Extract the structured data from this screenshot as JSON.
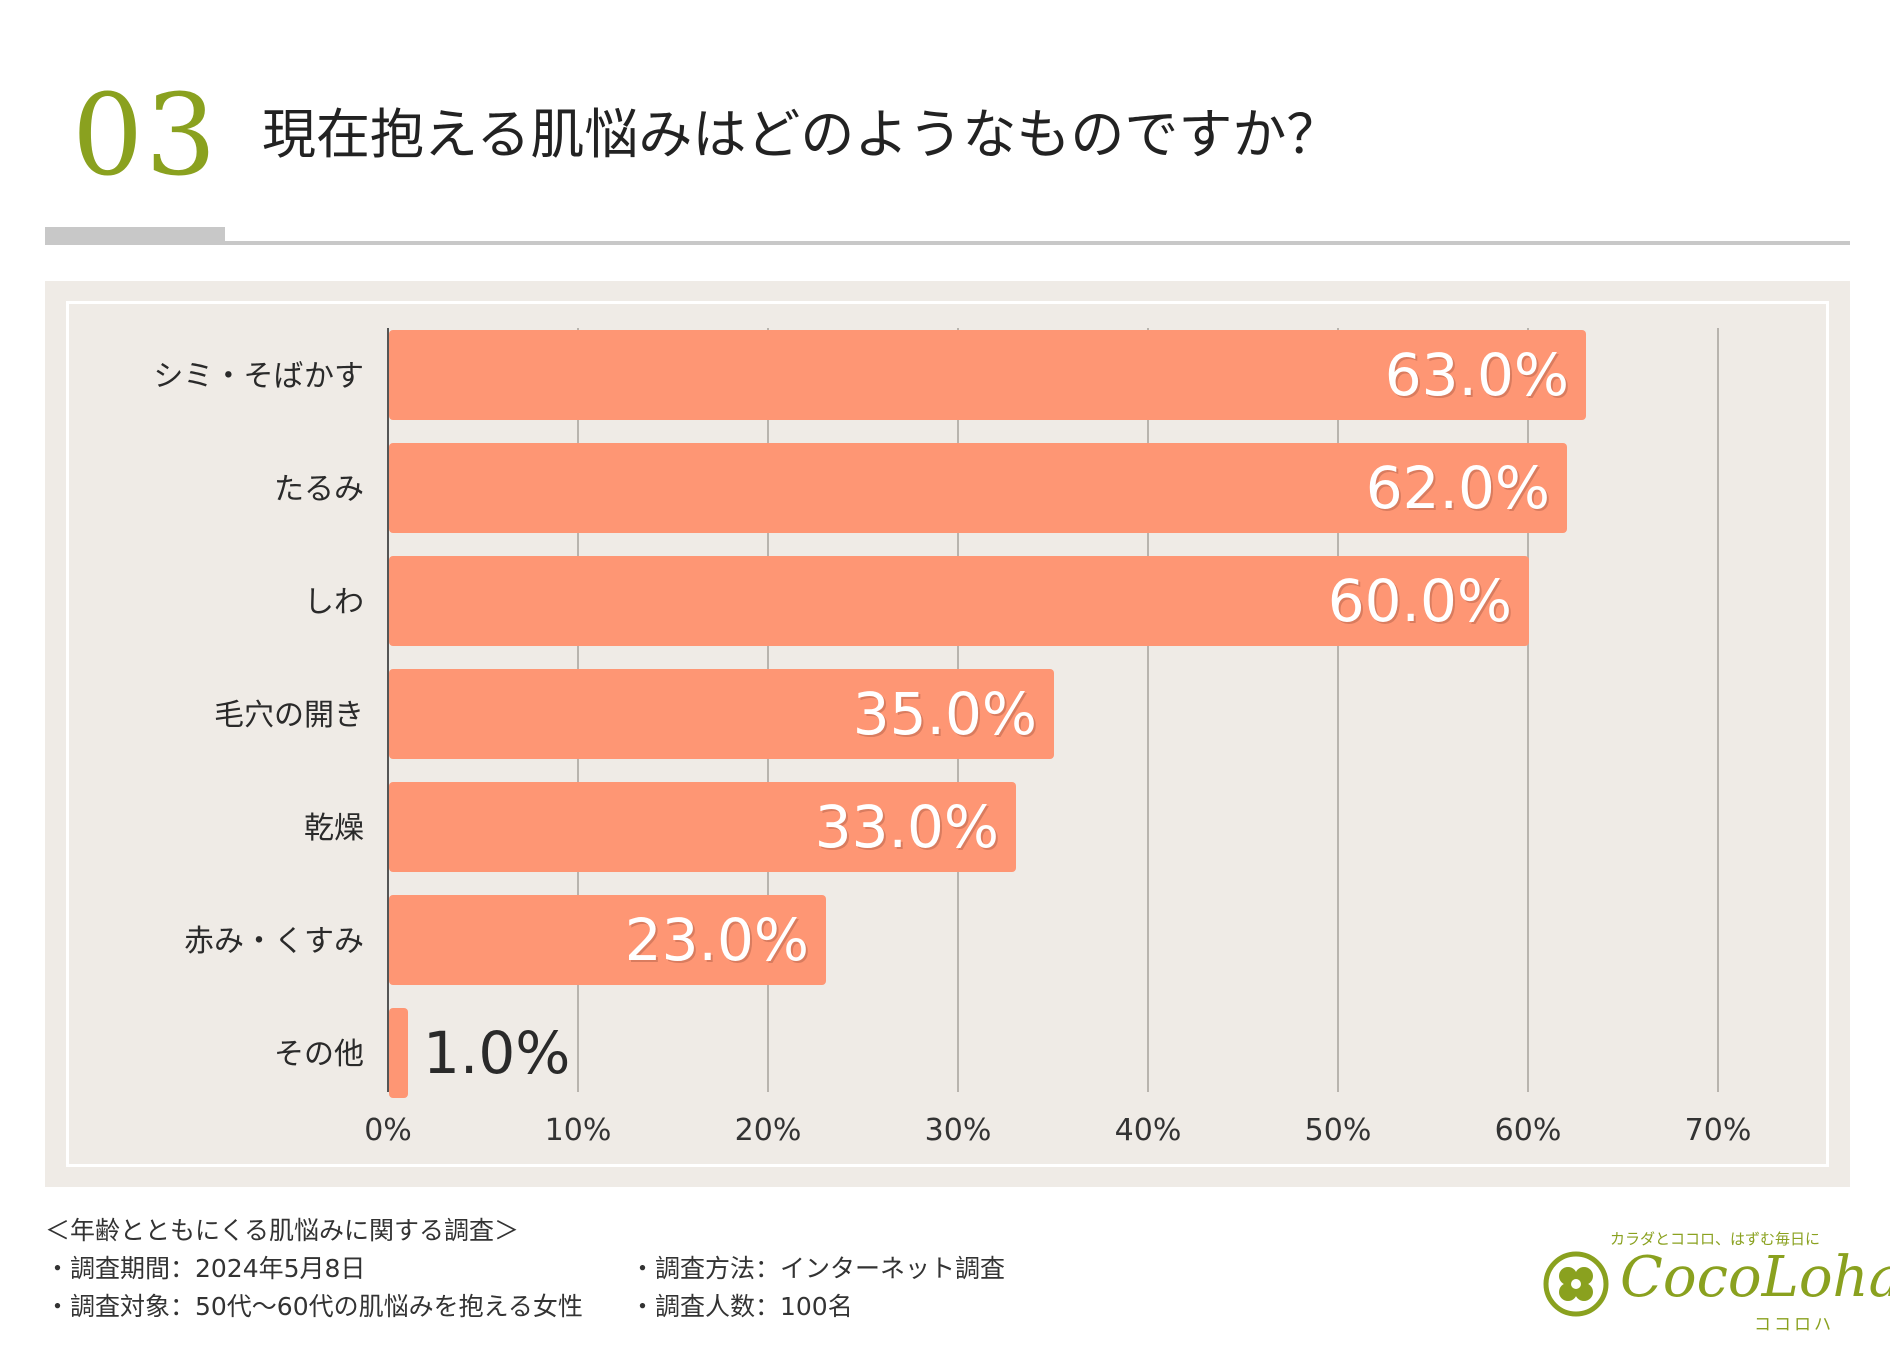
{
  "header": {
    "number": "03",
    "title": "現在抱える肌悩みはどのようなものですか？"
  },
  "chart_data": {
    "type": "bar",
    "orientation": "horizontal",
    "categories": [
      "シミ・そばかす",
      "たるみ",
      "しわ",
      "毛穴の開き",
      "乾燥",
      "赤み・くすみ",
      "その他"
    ],
    "values": [
      63.0,
      62.0,
      60.0,
      35.0,
      33.0,
      23.0,
      1.0
    ],
    "value_labels": [
      "63.0%",
      "62.0%",
      "60.0%",
      "35.0%",
      "33.0%",
      "23.0%",
      "1.0%"
    ],
    "xlim": [
      0,
      70
    ],
    "ticks": [
      0,
      10,
      20,
      30,
      40,
      50,
      60,
      70
    ],
    "tick_labels": [
      "0%",
      "10%",
      "20%",
      "30%",
      "40%",
      "50%",
      "60%",
      "70%"
    ],
    "grid": "vertical",
    "bar_color": "#fe9674",
    "label_color_inside": "#ffffff",
    "label_color_outside": "#2a2a2a",
    "background": "#efebe6"
  },
  "survey": {
    "title": "＜年齢とともにくる肌悩みに関する調査＞",
    "period": "・調査期間：2024年5月8日",
    "method": "・調査方法：インターネット調査",
    "target": "・調査対象：50代〜60代の肌悩みを抱える女性",
    "count": "・調査人数：100名"
  },
  "logo": {
    "tagline": "カラダとココロ、はずむ毎日に",
    "wordmark": "CocoLoha",
    "kana": "ココロハ",
    "icon": "clover-heart-icon",
    "color": "#8aa11f"
  }
}
